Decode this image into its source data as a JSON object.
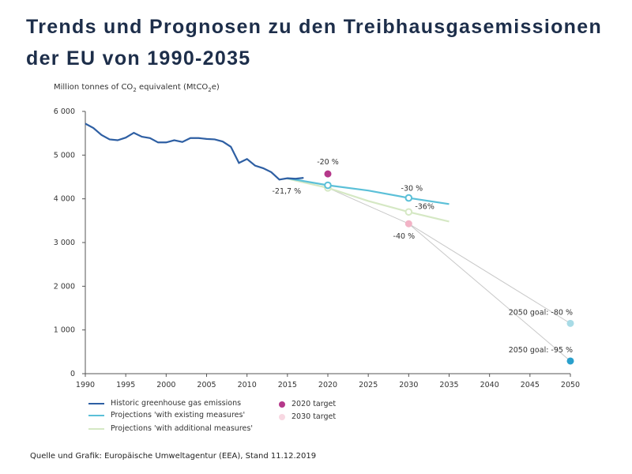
{
  "title": "Trends und Prognosen zu den Treibhausgasemissionen der EU von 1990-2035",
  "source": "Quelle und Grafik: Europäische Umweltagentur (EEA), Stand 11.12.2019",
  "chart_data": {
    "type": "line",
    "ylabel": "Million tonnes of CO2 equivalent (MtCO2e)",
    "ylabel_parts": {
      "a": "Million tonnes of CO",
      "b": "2",
      "c": " equivalent (MtCO",
      "d": "2",
      "e": "e)"
    },
    "xlim": [
      1990,
      2050
    ],
    "ylim": [
      0,
      6000
    ],
    "xticks": [
      "1990",
      "1995",
      "2000",
      "2005",
      "2010",
      "2015",
      "2020",
      "2025",
      "2030",
      "2035",
      "2040",
      "2045",
      "2050"
    ],
    "yticks": [
      "0",
      "1 000",
      "2 000",
      "3 000",
      "4 000",
      "5 000",
      "6 000"
    ],
    "series": [
      {
        "name": "Historic greenhouse gas emissions",
        "color": "#2e5fa3",
        "x": [
          1990,
          1991,
          1992,
          1993,
          1994,
          1995,
          1996,
          1997,
          1998,
          1999,
          2000,
          2001,
          2002,
          2003,
          2004,
          2005,
          2006,
          2007,
          2008,
          2009,
          2010,
          2011,
          2012,
          2013,
          2014,
          2015,
          2016,
          2017
        ],
        "y": [
          5720,
          5620,
          5460,
          5360,
          5340,
          5400,
          5510,
          5420,
          5390,
          5290,
          5290,
          5340,
          5300,
          5390,
          5390,
          5370,
          5360,
          5310,
          5190,
          4820,
          4910,
          4760,
          4700,
          4610,
          4440,
          4470,
          4460,
          4480
        ]
      },
      {
        "name": "Projections 'with existing measures'",
        "color": "#5bc0d8",
        "x": [
          2015,
          2020,
          2025,
          2030,
          2035
        ],
        "y": [
          4470,
          4310,
          4190,
          4020,
          3880
        ]
      },
      {
        "name": "Projections 'with additional measures'",
        "color": "#d5e8c4",
        "x": [
          2015,
          2020,
          2025,
          2030,
          2035
        ],
        "y": [
          4460,
          4250,
          3950,
          3700,
          3480
        ]
      }
    ],
    "targets": [
      {
        "name": "2020 target",
        "color": "#b5388a",
        "legend_color": "#b5388a",
        "x": 2020,
        "y": 4570,
        "label": "-20 %"
      },
      {
        "name": "2030 target",
        "color": "#f2b3c6",
        "legend_color": "#f8d8e2",
        "x": 2030,
        "y": 3430,
        "label": "-40 %"
      }
    ],
    "goals": [
      {
        "x": 2050,
        "y": 1150,
        "color": "#a8dbe6",
        "label": "2050 goal: -80 %"
      },
      {
        "x": 2050,
        "y": 290,
        "color": "#2aa0cc",
        "label": "2050 goal: -95 %"
      }
    ],
    "annotations": [
      {
        "text": "-21,7 %",
        "x": 2017,
        "y": 4480
      },
      {
        "text": "-30 %",
        "x": 2030,
        "y": 4020
      },
      {
        "text": "-36%",
        "x": 2030,
        "y": 3700
      }
    ]
  }
}
